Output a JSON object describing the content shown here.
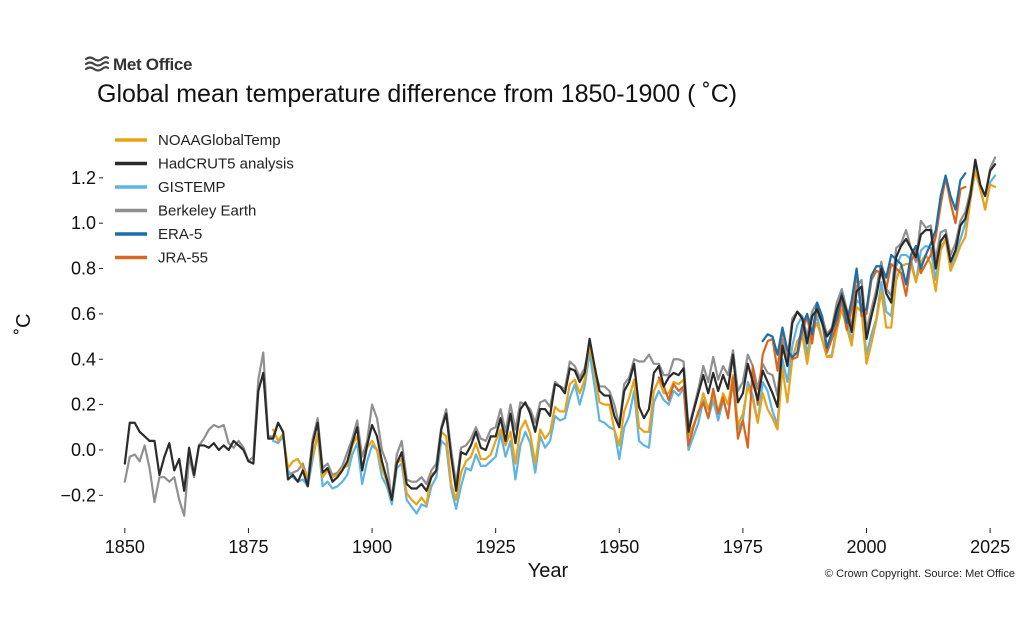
{
  "logo": {
    "text": "Met Office"
  },
  "copyright": "© Crown Copyright. Source: Met Office",
  "chart_data": {
    "type": "line",
    "title": "Global mean temperature difference from 1850-1900 ( ˚C)",
    "xlabel": "Year",
    "ylabel": "˚C",
    "xlim": [
      1847,
      2027
    ],
    "ylim": [
      -0.3,
      1.38
    ],
    "xticks": [
      1850,
      1875,
      1900,
      1925,
      1950,
      1975,
      2000,
      2025
    ],
    "yticks": [
      -0.2,
      0.0,
      0.2,
      0.4,
      0.6,
      0.8,
      1.0,
      1.2
    ],
    "ytick_labels": [
      "−0.2",
      "0.0",
      "0.2",
      "0.4",
      "0.6",
      "0.8",
      "1.0",
      "1.2"
    ],
    "grid": false,
    "legend_position": "top-left",
    "series": [
      {
        "name": "NOAAGlobalTemp",
        "color": "#e8a317",
        "start": 1880,
        "values": [
          0.09,
          0.04,
          0.07,
          -0.08,
          -0.05,
          -0.04,
          -0.08,
          -0.12,
          -0.02,
          0.07,
          -0.12,
          -0.09,
          -0.12,
          -0.11,
          -0.08,
          -0.07,
          0.02,
          0.06,
          -0.08,
          0.01,
          0.04,
          0.0,
          -0.08,
          -0.14,
          -0.22,
          -0.06,
          -0.04,
          -0.19,
          -0.22,
          -0.24,
          -0.21,
          -0.24,
          -0.11,
          -0.09,
          0.08,
          0.06,
          -0.15,
          -0.22,
          -0.1,
          -0.05,
          -0.03,
          0.03,
          -0.04,
          -0.04,
          -0.02,
          0.04,
          0.09,
          0.02,
          0.08,
          -0.06,
          0.09,
          0.13,
          0.07,
          -0.06,
          0.09,
          0.05,
          0.08,
          0.19,
          0.17,
          0.17,
          0.29,
          0.31,
          0.25,
          0.31,
          0.47,
          0.34,
          0.21,
          0.2,
          0.2,
          0.09,
          0.02,
          0.17,
          0.23,
          0.31,
          0.1,
          0.08,
          0.08,
          0.26,
          0.31,
          0.25,
          0.25,
          0.3,
          0.29,
          0.31,
          0.06,
          0.11,
          0.16,
          0.25,
          0.18,
          0.24,
          0.17,
          0.25,
          0.2,
          0.33,
          0.11,
          0.16,
          0.28,
          0.22,
          0.12,
          0.25,
          0.18,
          0.14,
          0.09,
          0.36,
          0.21,
          0.4,
          0.48,
          0.51,
          0.38,
          0.52,
          0.56,
          0.49,
          0.41,
          0.41,
          0.53,
          0.62,
          0.54,
          0.46,
          0.63,
          0.61,
          0.38,
          0.47,
          0.57,
          0.7,
          0.54,
          0.54,
          0.75,
          0.81,
          0.82,
          0.82,
          0.74,
          0.83,
          0.86,
          0.82,
          0.7,
          0.88,
          0.93,
          0.79,
          0.84,
          0.9,
          0.94,
          1.1,
          1.23,
          1.15,
          1.06,
          1.17,
          1.16
        ]
      },
      {
        "name": "HadCRUT5 analysis",
        "color": "#2b2b2b",
        "start": 1850,
        "values": [
          -0.06,
          0.12,
          0.12,
          0.08,
          0.06,
          0.04,
          0.04,
          -0.11,
          -0.03,
          0.03,
          -0.09,
          -0.04,
          -0.18,
          0.01,
          -0.11,
          0.02,
          0.02,
          0.01,
          0.03,
          0.0,
          0.02,
          0.0,
          0.04,
          0.02,
          0.0,
          -0.05,
          -0.06,
          0.26,
          0.34,
          0.05,
          0.05,
          0.12,
          0.08,
          -0.13,
          -0.11,
          -0.14,
          -0.09,
          -0.16,
          0.03,
          0.12,
          -0.1,
          -0.08,
          -0.14,
          -0.12,
          -0.09,
          -0.05,
          0.03,
          0.1,
          -0.09,
          0.02,
          0.11,
          0.06,
          -0.05,
          -0.13,
          -0.22,
          -0.06,
          -0.01,
          -0.15,
          -0.17,
          -0.17,
          -0.15,
          -0.18,
          -0.12,
          -0.09,
          0.09,
          0.16,
          -0.03,
          -0.18,
          -0.01,
          -0.02,
          0.02,
          0.08,
          0.01,
          0.0,
          0.06,
          0.06,
          0.14,
          0.04,
          0.16,
          0.03,
          0.18,
          0.21,
          0.16,
          0.08,
          0.18,
          0.18,
          0.15,
          0.29,
          0.28,
          0.25,
          0.36,
          0.35,
          0.3,
          0.34,
          0.49,
          0.37,
          0.26,
          0.24,
          0.24,
          0.15,
          0.1,
          0.26,
          0.3,
          0.38,
          0.19,
          0.14,
          0.18,
          0.34,
          0.37,
          0.28,
          0.32,
          0.34,
          0.33,
          0.36,
          0.08,
          0.17,
          0.25,
          0.33,
          0.25,
          0.34,
          0.26,
          0.33,
          0.27,
          0.42,
          0.21,
          0.25,
          0.38,
          0.3,
          0.22,
          0.35,
          0.3,
          0.25,
          0.19,
          0.46,
          0.37,
          0.56,
          0.61,
          0.58,
          0.47,
          0.59,
          0.62,
          0.56,
          0.5,
          0.53,
          0.62,
          0.68,
          0.61,
          0.52,
          0.7,
          0.72,
          0.49,
          0.59,
          0.68,
          0.8,
          0.69,
          0.65,
          0.85,
          0.9,
          0.93,
          0.89,
          0.85,
          0.95,
          0.97,
          0.97,
          0.8,
          0.92,
          0.95,
          0.83,
          0.88,
          0.99,
          1.02,
          1.12,
          1.28,
          1.17,
          1.12,
          1.23,
          1.26
        ]
      },
      {
        "name": "GISTEMP",
        "color": "#5db4e5",
        "start": 1880,
        "values": [
          0.04,
          0.03,
          0.06,
          -0.09,
          -0.12,
          -0.14,
          -0.13,
          -0.16,
          -0.04,
          0.07,
          -0.16,
          -0.14,
          -0.17,
          -0.16,
          -0.14,
          -0.11,
          -0.02,
          0.03,
          -0.15,
          -0.05,
          0.02,
          0.0,
          -0.12,
          -0.16,
          -0.24,
          -0.08,
          -0.06,
          -0.22,
          -0.25,
          -0.28,
          -0.24,
          -0.25,
          -0.16,
          -0.12,
          0.04,
          0.02,
          -0.17,
          -0.26,
          -0.16,
          -0.08,
          -0.09,
          -0.02,
          -0.07,
          -0.07,
          -0.05,
          -0.03,
          0.07,
          -0.03,
          0.04,
          -0.13,
          0.02,
          0.08,
          0.03,
          -0.1,
          0.06,
          0.01,
          0.04,
          0.15,
          0.13,
          0.14,
          0.23,
          0.29,
          0.2,
          0.28,
          0.43,
          0.28,
          0.13,
          0.12,
          0.1,
          0.09,
          -0.04,
          0.1,
          0.15,
          0.26,
          0.04,
          0.02,
          0.01,
          0.21,
          0.26,
          0.22,
          0.2,
          0.26,
          0.24,
          0.27,
          0.0,
          0.06,
          0.12,
          0.22,
          0.14,
          0.22,
          0.13,
          0.22,
          0.15,
          0.3,
          0.09,
          0.13,
          0.3,
          0.24,
          0.12,
          0.3,
          0.26,
          0.17,
          0.11,
          0.4,
          0.3,
          0.46,
          0.55,
          0.59,
          0.42,
          0.53,
          0.59,
          0.49,
          0.41,
          0.42,
          0.55,
          0.68,
          0.56,
          0.48,
          0.66,
          0.64,
          0.42,
          0.51,
          0.58,
          0.74,
          0.61,
          0.59,
          0.81,
          0.86,
          0.86,
          0.84,
          0.74,
          0.88,
          0.9,
          0.89,
          0.75,
          0.89,
          0.93,
          0.81,
          0.87,
          0.93,
          1.0,
          1.12,
          1.25,
          1.16,
          1.06,
          1.18,
          1.21
        ]
      },
      {
        "name": "Berkeley Earth",
        "color": "#909090",
        "start": 1850,
        "values": [
          -0.14,
          -0.03,
          -0.02,
          -0.05,
          0.02,
          -0.08,
          -0.23,
          -0.12,
          -0.12,
          -0.14,
          -0.12,
          -0.22,
          -0.29,
          -0.03,
          -0.12,
          0.02,
          0.05,
          0.09,
          0.11,
          0.1,
          0.11,
          0.03,
          0.01,
          0.04,
          0.01,
          -0.05,
          -0.03,
          0.31,
          0.43,
          0.06,
          0.06,
          0.12,
          0.08,
          -0.11,
          -0.1,
          -0.09,
          -0.06,
          -0.13,
          0.05,
          0.14,
          -0.08,
          -0.06,
          -0.11,
          -0.1,
          -0.07,
          -0.01,
          0.05,
          0.13,
          -0.03,
          0.04,
          0.2,
          0.14,
          0.0,
          -0.06,
          -0.22,
          -0.02,
          0.04,
          -0.13,
          -0.14,
          -0.14,
          -0.12,
          -0.15,
          -0.09,
          -0.06,
          0.1,
          0.18,
          0.0,
          -0.15,
          0.01,
          0.02,
          0.05,
          0.1,
          0.05,
          0.04,
          0.09,
          0.1,
          0.18,
          0.08,
          0.2,
          0.09,
          0.21,
          0.2,
          0.18,
          0.12,
          0.21,
          0.22,
          0.19,
          0.3,
          0.28,
          0.27,
          0.39,
          0.37,
          0.32,
          0.36,
          0.47,
          0.35,
          0.28,
          0.28,
          0.26,
          0.2,
          0.11,
          0.29,
          0.32,
          0.4,
          0.39,
          0.39,
          0.42,
          0.38,
          0.38,
          0.33,
          0.33,
          0.4,
          0.4,
          0.39,
          0.1,
          0.18,
          0.27,
          0.37,
          0.3,
          0.41,
          0.31,
          0.37,
          0.33,
          0.44,
          0.26,
          0.3,
          0.42,
          0.37,
          0.27,
          0.38,
          0.34,
          0.33,
          0.24,
          0.49,
          0.4,
          0.58,
          0.61,
          0.59,
          0.5,
          0.61,
          0.65,
          0.59,
          0.51,
          0.54,
          0.65,
          0.71,
          0.62,
          0.55,
          0.72,
          0.75,
          0.53,
          0.62,
          0.71,
          0.83,
          0.71,
          0.68,
          0.89,
          0.91,
          0.97,
          0.89,
          0.83,
          1.01,
          0.98,
          0.99,
          0.84,
          0.96,
          0.97,
          0.86,
          0.91,
          1.01,
          1.05,
          1.14,
          1.27,
          1.17,
          1.12,
          1.24,
          1.29
        ]
      },
      {
        "name": "ERA-5",
        "color": "#1c6fa8",
        "start": 1979,
        "values": [
          0.48,
          0.51,
          0.5,
          0.42,
          0.54,
          0.44,
          0.41,
          0.43,
          0.55,
          0.6,
          0.51,
          0.65,
          0.59,
          0.45,
          0.52,
          0.58,
          0.69,
          0.56,
          0.66,
          0.8,
          0.61,
          0.62,
          0.77,
          0.81,
          0.81,
          0.76,
          0.86,
          0.84,
          0.82,
          0.73,
          0.86,
          0.9,
          0.8,
          0.86,
          0.91,
          0.97,
          1.12,
          1.21,
          1.12,
          1.06,
          1.19,
          1.22
        ]
      },
      {
        "name": "JRA-55",
        "color": "#d9661f",
        "start": 1958,
        "values": [
          0.32,
          0.28,
          0.22,
          0.29,
          0.26,
          0.28,
          0.02,
          0.1,
          0.17,
          0.21,
          0.14,
          0.27,
          0.16,
          0.23,
          0.14,
          0.32,
          0.05,
          0.13,
          0.01,
          0.37,
          0.2,
          0.42,
          0.48,
          0.49,
          0.35,
          0.53,
          0.44,
          0.4,
          0.41,
          0.52,
          0.59,
          0.47,
          0.63,
          0.57,
          0.43,
          0.49,
          0.55,
          0.66,
          0.53,
          0.62,
          0.78,
          0.59,
          0.6,
          0.75,
          0.79,
          0.78,
          0.71,
          0.82,
          0.8,
          0.78,
          0.68,
          0.83,
          0.88,
          0.78,
          0.82,
          0.86,
          0.94,
          1.08,
          1.2,
          1.09,
          1.0,
          1.15,
          1.16
        ]
      }
    ]
  }
}
